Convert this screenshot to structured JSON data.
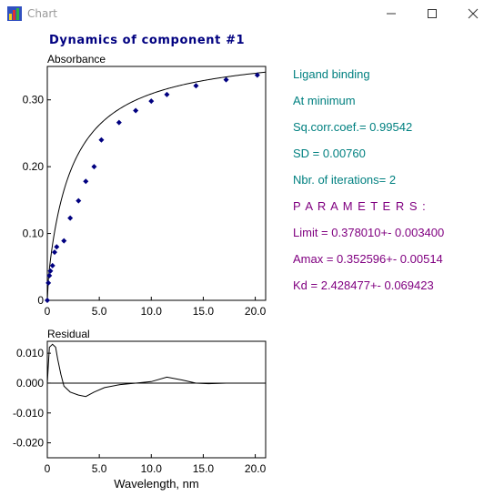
{
  "window": {
    "title": "Chart",
    "buttons": [
      "minimize",
      "maximize",
      "close"
    ],
    "icon": "chart-app-icon"
  },
  "chart_title": "Dynamics of component #1",
  "info": {
    "model": "Ligand binding",
    "mode": "At minimum",
    "sq_corr": "Sq.corr.coef.= 0.99542",
    "sd": "SD = 0.00760",
    "iterations": "Nbr. of iterations=  2",
    "parameters_header": "P A R A M E T E R S :",
    "limit": "Limit =   0.378010+-  0.003400",
    "amax": "Amax  =    0.352596+-  0.00514",
    "kd": "Kd   =   2.428477+-  0.069423"
  },
  "colors": {
    "title": "#000080",
    "info_teal": "#008080",
    "info_purple": "#800080",
    "points": "#000080",
    "line": "#000000"
  },
  "chart_data": [
    {
      "type": "scatter",
      "title": "Absorbance",
      "xlim": [
        0,
        21
      ],
      "ylim": [
        0,
        0.35
      ],
      "xticks": [
        0,
        5,
        10,
        15,
        20
      ],
      "xtick_labels": [
        "0",
        "5.0",
        "10.0",
        "15.0",
        "20.0"
      ],
      "yticks": [
        0,
        0.1,
        0.2,
        0.3
      ],
      "ytick_labels": [
        "0",
        "0.10",
        "0.20",
        "0.30"
      ],
      "grid": false,
      "series": [
        {
          "type": "scatter",
          "x": [
            0.0,
            0.1,
            0.2,
            0.3,
            0.5,
            0.7,
            0.9,
            1.6,
            2.2,
            3.0,
            3.7,
            4.5,
            5.2,
            6.9,
            8.5,
            10.0,
            11.5,
            14.3,
            17.2,
            20.2
          ],
          "y": [
            0.0,
            0.026,
            0.037,
            0.044,
            0.052,
            0.072,
            0.08,
            0.089,
            0.123,
            0.149,
            0.178,
            0.2,
            0.24,
            0.266,
            0.284,
            0.298,
            0.308,
            0.321,
            0.33,
            0.337
          ]
        },
        {
          "type": "line",
          "model": "ligand-binding-fit"
        }
      ]
    },
    {
      "type": "line",
      "title": "Residual",
      "xlabel": "Wavelength, nm",
      "xlim": [
        0,
        21
      ],
      "ylim": [
        -0.025,
        0.014
      ],
      "xticks": [
        0,
        5,
        10,
        15,
        20
      ],
      "xtick_labels": [
        "0",
        "5.0",
        "10.0",
        "15.0",
        "20.0"
      ],
      "yticks": [
        0.01,
        0.0,
        -0.01,
        -0.02
      ],
      "ytick_labels": [
        "0.010",
        "0.000",
        "-0.010",
        "-0.020"
      ],
      "zero_line": true,
      "x": [
        0.0,
        0.2,
        0.5,
        0.8,
        1.0,
        1.3,
        1.6,
        2.2,
        3.0,
        3.7,
        4.5,
        5.5,
        7.0,
        8.5,
        10.0,
        11.5,
        13.0,
        14.3,
        15.5,
        17.2,
        19.0,
        20.2
      ],
      "y": [
        0.0,
        0.012,
        0.013,
        0.012,
        0.008,
        0.003,
        -0.001,
        -0.003,
        -0.004,
        -0.0045,
        -0.003,
        -0.0015,
        -0.0005,
        0.0,
        0.0005,
        0.002,
        0.001,
        0.0,
        -0.0002,
        0.0,
        0.0,
        0.0
      ]
    }
  ]
}
